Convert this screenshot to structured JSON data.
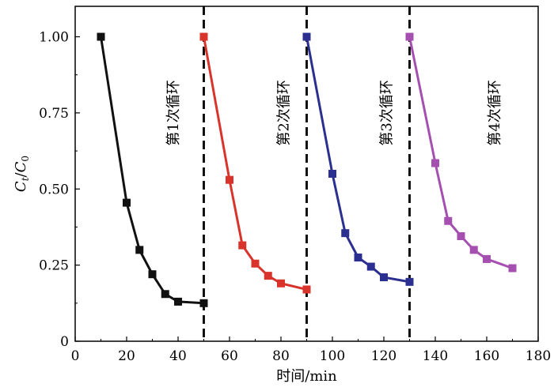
{
  "chart_data": {
    "type": "line",
    "xlabel": "时间/min",
    "ylabel_parts": {
      "main": "C",
      "sub_t": "t",
      "slash": "/",
      "main2": "C",
      "sub_0": "0"
    },
    "xlim": [
      0,
      180
    ],
    "ylim": [
      0,
      1.1
    ],
    "xticks": [
      0,
      20,
      40,
      60,
      80,
      100,
      120,
      140,
      160,
      180
    ],
    "yticks": [
      0,
      0.25,
      0.5,
      0.75,
      1.0
    ],
    "ytick_labels": [
      "0",
      "0.25",
      "0.50",
      "0.75",
      "1.00"
    ],
    "grid": false,
    "marker": "square",
    "dividers_x": [
      50,
      90,
      130
    ],
    "annotations": [
      {
        "text": "第1次循环",
        "x": 40,
        "y": 0.75
      },
      {
        "text": "第2次循环",
        "x": 83,
        "y": 0.75
      },
      {
        "text": "第3次循环",
        "x": 123,
        "y": 0.75
      },
      {
        "text": "第4次循环",
        "x": 165,
        "y": 0.75
      }
    ],
    "series": [
      {
        "color": "#111111",
        "x": [
          10,
          20,
          25,
          30,
          35,
          40,
          50
        ],
        "y": [
          1.0,
          0.455,
          0.3,
          0.22,
          0.155,
          0.13,
          0.125
        ]
      },
      {
        "color": "#d9342b",
        "x": [
          50,
          60,
          65,
          70,
          75,
          80,
          90
        ],
        "y": [
          1.0,
          0.53,
          0.315,
          0.255,
          0.215,
          0.19,
          0.17
        ]
      },
      {
        "color": "#2b2f8f",
        "x": [
          90,
          100,
          105,
          110,
          115,
          120,
          130
        ],
        "y": [
          1.0,
          0.55,
          0.355,
          0.275,
          0.245,
          0.21,
          0.195
        ]
      },
      {
        "color": "#a54fb0",
        "x": [
          130,
          140,
          145,
          150,
          155,
          160,
          170
        ],
        "y": [
          1.0,
          0.585,
          0.395,
          0.345,
          0.3,
          0.27,
          0.24
        ]
      }
    ]
  }
}
